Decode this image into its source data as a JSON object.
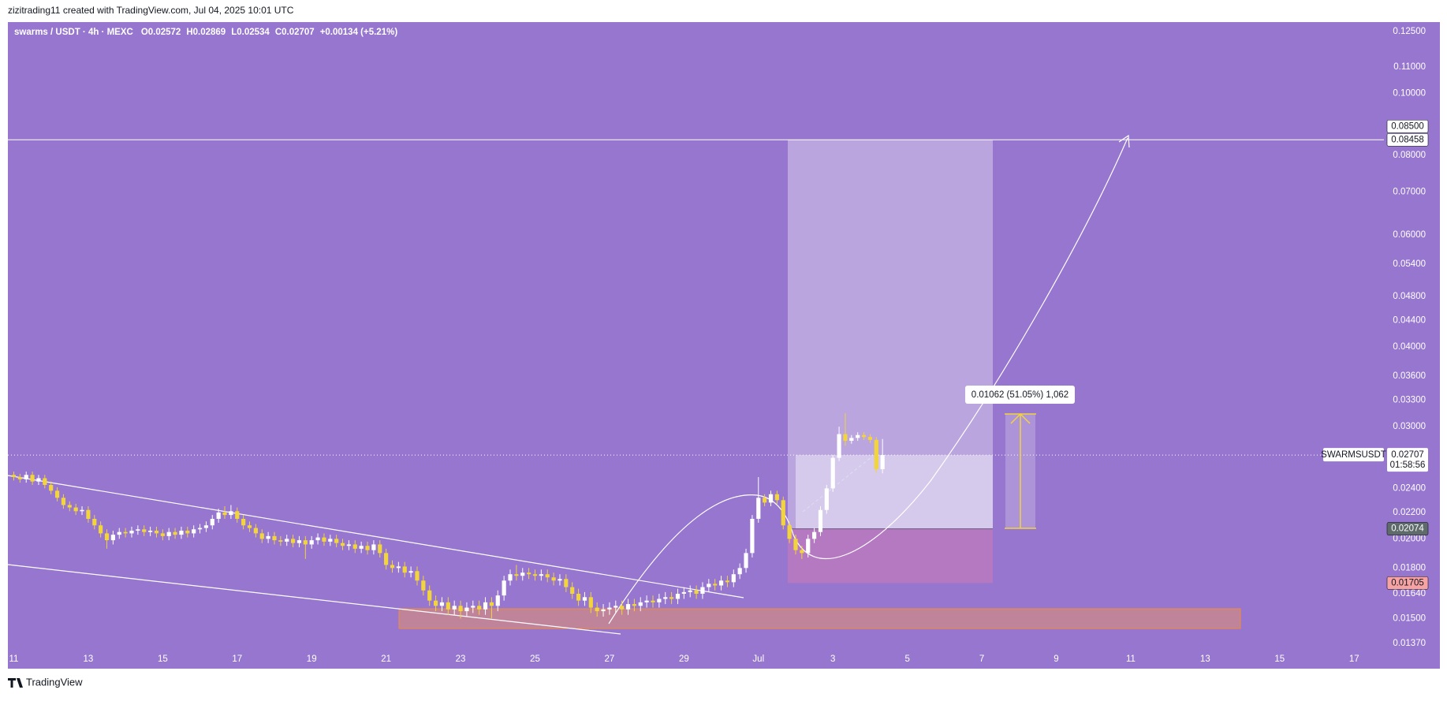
{
  "header": {
    "attribution": "zizitrading11 created with TradingView.com, Jul 04, 2025 10:01 UTC",
    "footer": "TradingView"
  },
  "chart_data": {
    "type": "candlestick",
    "title": "swarms / USDT · 4h · MEXC",
    "legend_values": [
      "O0.02572",
      "H0.02869",
      "L0.02534",
      "C0.02707",
      "+0.00134 (+5.21%)"
    ],
    "categories": [
      null,
      null,
      null,
      null,
      null,
      null,
      null,
      null,
      null,
      null,
      null,
      null,
      null,
      null,
      null,
      null,
      null,
      null,
      null,
      null,
      null,
      null,
      null,
      null,
      null,
      null,
      null,
      null,
      null,
      null,
      null,
      null,
      null,
      null,
      null,
      null,
      null,
      null,
      null,
      null,
      null,
      null,
      null,
      null,
      null,
      null,
      null,
      null,
      null,
      null,
      null,
      null,
      null,
      null,
      null,
      null,
      null,
      null,
      null,
      null,
      null,
      null,
      null,
      null,
      null,
      null,
      null,
      null,
      null,
      null,
      null,
      null,
      null,
      null,
      null,
      null,
      null,
      null,
      null,
      null,
      null,
      null,
      null,
      null,
      null,
      null,
      null,
      null,
      null,
      null,
      null,
      null,
      null,
      null,
      null,
      null,
      null,
      null,
      null,
      null,
      null,
      null,
      null,
      null,
      null,
      null,
      null,
      null,
      null,
      null,
      null,
      null,
      null,
      null,
      null,
      null,
      null,
      null,
      null,
      null,
      null,
      null,
      null,
      null,
      null,
      null,
      null,
      null,
      null,
      null,
      null,
      null,
      null,
      null,
      null,
      null,
      null,
      null,
      null,
      null,
      null
    ],
    "open": [
      0.0252,
      0.025,
      0.0248,
      0.0252,
      0.0246,
      0.0249,
      0.0243,
      0.0238,
      0.0232,
      0.0226,
      0.0224,
      0.0221,
      0.0222,
      0.0215,
      0.021,
      0.0204,
      0.0199,
      0.0203,
      0.0205,
      0.0204,
      0.0206,
      0.0207,
      0.0205,
      0.0206,
      0.0204,
      0.0202,
      0.0205,
      0.0203,
      0.0206,
      0.0204,
      0.0207,
      0.0208,
      0.021,
      0.0215,
      0.022,
      0.0218,
      0.0221,
      0.0215,
      0.021,
      0.0208,
      0.0204,
      0.02,
      0.0202,
      0.0199,
      0.0198,
      0.02,
      0.0197,
      0.0199,
      0.0196,
      0.0199,
      0.0201,
      0.0198,
      0.02,
      0.0197,
      0.0195,
      0.0196,
      0.0193,
      0.0195,
      0.0192,
      0.0196,
      0.019,
      0.0182,
      0.018,
      0.0181,
      0.0177,
      0.0178,
      0.0172,
      0.0166,
      0.016,
      0.0157,
      0.0159,
      0.0155,
      0.0157,
      0.0154,
      0.0156,
      0.0157,
      0.0155,
      0.0159,
      0.0157,
      0.0163,
      0.0172,
      0.0176,
      0.0175,
      0.0177,
      0.0176,
      0.0175,
      0.0176,
      0.0174,
      0.0172,
      0.0173,
      0.0168,
      0.0164,
      0.016,
      0.0162,
      0.0156,
      0.0154,
      0.0155,
      0.0156,
      0.0157,
      0.0155,
      0.0158,
      0.0157,
      0.0159,
      0.016,
      0.0159,
      0.0161,
      0.0162,
      0.0161,
      0.0164,
      0.0165,
      0.0166,
      0.0164,
      0.0168,
      0.017,
      0.0169,
      0.0172,
      0.0171,
      0.0176,
      0.018,
      0.019,
      0.0215,
      0.0232,
      0.0228,
      0.0235,
      0.023,
      0.021,
      0.02,
      0.0192,
      0.019,
      0.02,
      0.0205,
      0.0222,
      0.024,
      0.0268,
      0.0292,
      0.0285,
      0.0288,
      0.0291,
      0.0289,
      0.0286,
      0.02572
    ],
    "high": [
      0.0255,
      0.0253,
      0.0255,
      0.0255,
      0.0252,
      0.0252,
      0.0246,
      0.0241,
      0.0235,
      0.0229,
      0.0227,
      0.0225,
      0.0225,
      0.0218,
      0.0213,
      0.0207,
      0.0206,
      0.0208,
      0.0208,
      0.0209,
      0.021,
      0.021,
      0.0209,
      0.0209,
      0.0207,
      0.0208,
      0.0208,
      0.0209,
      0.0209,
      0.021,
      0.0211,
      0.0213,
      0.0218,
      0.0223,
      0.0225,
      0.0226,
      0.0224,
      0.0218,
      0.0213,
      0.0211,
      0.0207,
      0.0205,
      0.0205,
      0.0202,
      0.0203,
      0.0203,
      0.0202,
      0.0202,
      0.0202,
      0.0204,
      0.0204,
      0.0203,
      0.0203,
      0.02,
      0.0199,
      0.0199,
      0.0198,
      0.0198,
      0.0199,
      0.0199,
      0.0193,
      0.0185,
      0.0184,
      0.0184,
      0.0181,
      0.0181,
      0.0175,
      0.0169,
      0.0163,
      0.0162,
      0.0162,
      0.016,
      0.016,
      0.0159,
      0.016,
      0.016,
      0.0162,
      0.0162,
      0.0166,
      0.0175,
      0.0179,
      0.0182,
      0.018,
      0.018,
      0.0179,
      0.0179,
      0.0179,
      0.0177,
      0.0176,
      0.0176,
      0.0171,
      0.0167,
      0.0165,
      0.0165,
      0.0159,
      0.0158,
      0.0159,
      0.016,
      0.016,
      0.0161,
      0.0161,
      0.0162,
      0.0163,
      0.0163,
      0.0164,
      0.0165,
      0.0165,
      0.0167,
      0.0168,
      0.0169,
      0.0169,
      0.0171,
      0.0173,
      0.0173,
      0.0175,
      0.0175,
      0.0179,
      0.0183,
      0.0193,
      0.0218,
      0.025,
      0.0235,
      0.0238,
      0.0238,
      0.0233,
      0.0213,
      0.0203,
      0.0195,
      0.0203,
      0.0208,
      0.0225,
      0.0243,
      0.0271,
      0.03,
      0.0315,
      0.0291,
      0.0294,
      0.0294,
      0.0292,
      0.0289,
      0.02869
    ],
    "low": [
      0.0247,
      0.0245,
      0.0245,
      0.0243,
      0.0243,
      0.024,
      0.0235,
      0.0229,
      0.0223,
      0.0221,
      0.0218,
      0.0218,
      0.0212,
      0.0207,
      0.0201,
      0.0193,
      0.0196,
      0.02,
      0.0201,
      0.0201,
      0.0203,
      0.0202,
      0.0202,
      0.0201,
      0.0199,
      0.0199,
      0.02,
      0.02,
      0.0201,
      0.0201,
      0.0204,
      0.0205,
      0.0207,
      0.0212,
      0.0215,
      0.0215,
      0.0212,
      0.0207,
      0.0205,
      0.0201,
      0.0197,
      0.0197,
      0.0196,
      0.0195,
      0.0195,
      0.0194,
      0.0194,
      0.0186,
      0.0193,
      0.0196,
      0.0195,
      0.0195,
      0.0194,
      0.0192,
      0.0192,
      0.019,
      0.019,
      0.0189,
      0.0189,
      0.0187,
      0.0179,
      0.0177,
      0.0177,
      0.0174,
      0.0174,
      0.0169,
      0.0163,
      0.0157,
      0.0154,
      0.0154,
      0.0152,
      0.0152,
      0.015,
      0.0151,
      0.0153,
      0.0152,
      0.0152,
      0.015,
      0.0154,
      0.016,
      0.0169,
      0.0172,
      0.0172,
      0.0173,
      0.0172,
      0.0172,
      0.0171,
      0.0169,
      0.0169,
      0.0165,
      0.0161,
      0.0157,
      0.0157,
      0.0153,
      0.0151,
      0.0151,
      0.0152,
      0.0153,
      0.0152,
      0.0152,
      0.0154,
      0.0154,
      0.0156,
      0.0156,
      0.0156,
      0.0158,
      0.0158,
      0.0158,
      0.0161,
      0.0162,
      0.0161,
      0.0161,
      0.0165,
      0.0166,
      0.0166,
      0.0168,
      0.0168,
      0.0173,
      0.0177,
      0.0187,
      0.0212,
      0.0225,
      0.0225,
      0.0227,
      0.0207,
      0.0197,
      0.0189,
      0.0186,
      0.0187,
      0.0197,
      0.0202,
      0.0219,
      0.0237,
      0.0265,
      0.028,
      0.0282,
      0.0285,
      0.0286,
      0.0283,
      0.0254,
      0.02534
    ],
    "close": [
      0.025,
      0.0248,
      0.0252,
      0.0246,
      0.0249,
      0.0243,
      0.0238,
      0.0232,
      0.0226,
      0.0224,
      0.0221,
      0.0222,
      0.0215,
      0.021,
      0.0204,
      0.0199,
      0.0203,
      0.0205,
      0.0204,
      0.0206,
      0.0207,
      0.0205,
      0.0206,
      0.0204,
      0.0202,
      0.0205,
      0.0203,
      0.0206,
      0.0204,
      0.0207,
      0.0208,
      0.021,
      0.0215,
      0.022,
      0.0218,
      0.0221,
      0.0215,
      0.021,
      0.0208,
      0.0204,
      0.02,
      0.0202,
      0.0199,
      0.0198,
      0.02,
      0.0197,
      0.0199,
      0.0196,
      0.0199,
      0.0201,
      0.0198,
      0.02,
      0.0197,
      0.0195,
      0.0196,
      0.0193,
      0.0195,
      0.0192,
      0.0196,
      0.019,
      0.0182,
      0.018,
      0.0181,
      0.0177,
      0.0178,
      0.0172,
      0.0166,
      0.016,
      0.0157,
      0.0159,
      0.0155,
      0.0157,
      0.0154,
      0.0156,
      0.0157,
      0.0155,
      0.0159,
      0.0157,
      0.0163,
      0.0172,
      0.0176,
      0.0175,
      0.0177,
      0.0176,
      0.0175,
      0.0176,
      0.0174,
      0.0172,
      0.0173,
      0.0168,
      0.0164,
      0.016,
      0.0162,
      0.0156,
      0.0154,
      0.0155,
      0.0156,
      0.0157,
      0.0155,
      0.0158,
      0.0157,
      0.0159,
      0.016,
      0.0159,
      0.0161,
      0.0162,
      0.0161,
      0.0164,
      0.0165,
      0.0166,
      0.0164,
      0.0168,
      0.017,
      0.0169,
      0.0172,
      0.0171,
      0.0176,
      0.018,
      0.019,
      0.0215,
      0.0232,
      0.0228,
      0.0235,
      0.023,
      0.021,
      0.02,
      0.0192,
      0.019,
      0.02,
      0.0205,
      0.0222,
      0.024,
      0.0268,
      0.0292,
      0.0285,
      0.0288,
      0.0291,
      0.0289,
      0.0286,
      0.02572,
      0.02707
    ],
    "up_color": "#ffffff",
    "down_color": "#f2d43d",
    "log_scale": true,
    "grid": false,
    "ylim": [
      0.01317,
      0.1294
    ],
    "yticks": [
      {
        "value": 0.125,
        "label": "0.12500"
      },
      {
        "value": 0.11,
        "label": "0.11000"
      },
      {
        "value": 0.1,
        "label": "0.10000"
      },
      {
        "value": 0.08,
        "label": "0.08000"
      },
      {
        "value": 0.07,
        "label": "0.07000"
      },
      {
        "value": 0.06,
        "label": "0.06000"
      },
      {
        "value": 0.054,
        "label": "0.05400"
      },
      {
        "value": 0.048,
        "label": "0.04800"
      },
      {
        "value": 0.044,
        "label": "0.04400"
      },
      {
        "value": 0.04,
        "label": "0.04000"
      },
      {
        "value": 0.036,
        "label": "0.03600"
      },
      {
        "value": 0.033,
        "label": "0.03300"
      },
      {
        "value": 0.03,
        "label": "0.03000"
      },
      {
        "value": 0.024,
        "label": "0.02400"
      },
      {
        "value": 0.022,
        "label": "0.02200"
      },
      {
        "value": 0.02,
        "label": "0.02000"
      },
      {
        "value": 0.018,
        "label": "0.01800"
      },
      {
        "value": 0.0164,
        "label": "0.01640"
      },
      {
        "value": 0.015,
        "label": "0.01500"
      },
      {
        "value": 0.0137,
        "label": "0.01370"
      }
    ],
    "xlim": [
      -0.95,
      220.8
    ],
    "xticks": [
      {
        "value": 0,
        "label": "11"
      },
      {
        "value": 12,
        "label": "13"
      },
      {
        "value": 24,
        "label": "15"
      },
      {
        "value": 36,
        "label": "17"
      },
      {
        "value": 48,
        "label": "19"
      },
      {
        "value": 60,
        "label": "21"
      },
      {
        "value": 72,
        "label": "23"
      },
      {
        "value": 84,
        "label": "25"
      },
      {
        "value": 96,
        "label": "27"
      },
      {
        "value": 108,
        "label": "29"
      },
      {
        "value": 120,
        "label": "Jul"
      },
      {
        "value": 132,
        "label": "3"
      },
      {
        "value": 144,
        "label": "5"
      },
      {
        "value": 156,
        "label": "7"
      },
      {
        "value": 168,
        "label": "9"
      },
      {
        "value": 180,
        "label": "11"
      },
      {
        "value": 192,
        "label": "13"
      },
      {
        "value": 204,
        "label": "15"
      },
      {
        "value": 216,
        "label": "17"
      }
    ],
    "axis_tags": [
      {
        "value": 0.085,
        "label": "0.08500",
        "color": "#ffffff",
        "text_color": "#131722"
      },
      {
        "value": 0.08458,
        "label": "0.08458",
        "color": "#ffffff",
        "text_color": "#131722"
      },
      {
        "value": 0.02074,
        "label": "0.02074",
        "color": "#5e6b6a",
        "text_color": "#ffffff"
      },
      {
        "value": 0.01705,
        "label": "0.01705",
        "color": "#f7a3a3",
        "text_color": "#131722"
      }
    ],
    "last_price": {
      "value": 0.02707,
      "label": "0.02707"
    },
    "symbol_tag": "SWARMSUSDT",
    "countdown": "01:58:56",
    "measure_label": "0.01062 (51.05%) 1,062"
  }
}
